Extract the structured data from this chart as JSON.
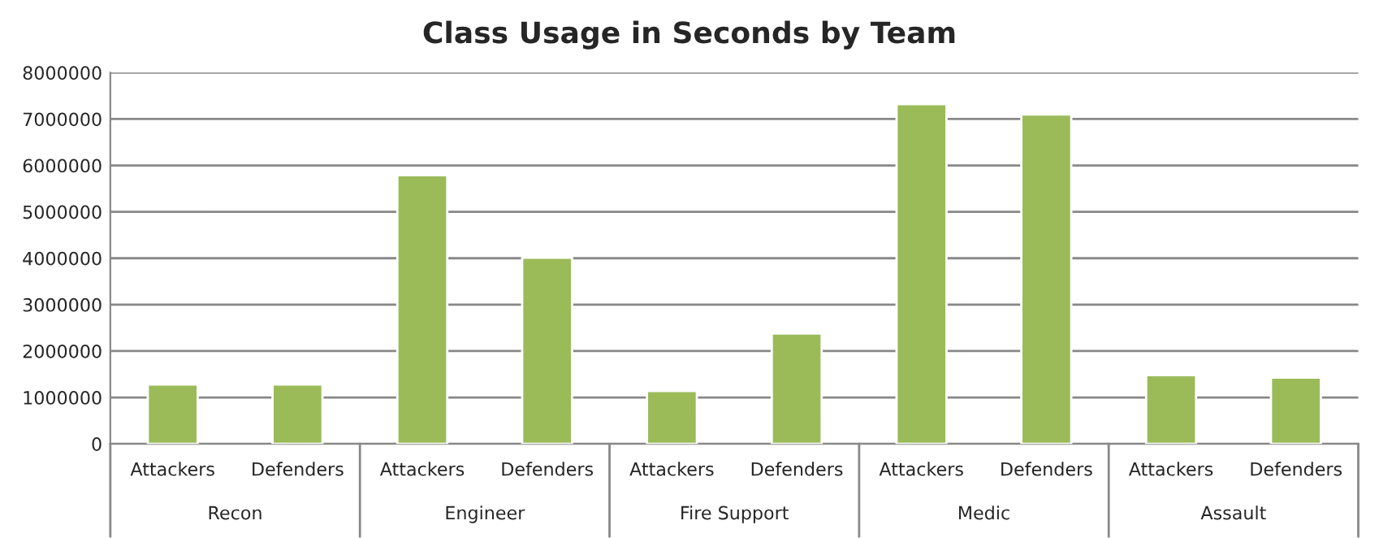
{
  "chart_data": {
    "type": "bar",
    "title": "Class Usage in Seconds by Team",
    "categories": [
      "Attackers",
      "Defenders",
      "Attackers",
      "Defenders",
      "Attackers",
      "Defenders",
      "Attackers",
      "Defenders",
      "Attackers",
      "Defenders"
    ],
    "values": [
      1280000,
      1280000,
      5790000,
      4010000,
      1140000,
      2380000,
      7320000,
      7100000,
      1480000,
      1430000
    ],
    "color": "#9bbb59",
    "annotations": [
      "Recon",
      "Engineer",
      "Fire Support",
      "Medic",
      "Assault"
    ],
    "ylim": [
      0,
      8000000
    ],
    "yticks": [
      0,
      1000000,
      2000000,
      3000000,
      4000000,
      5000000,
      6000000,
      7000000,
      8000000
    ],
    "grid": "y",
    "legend": false
  }
}
